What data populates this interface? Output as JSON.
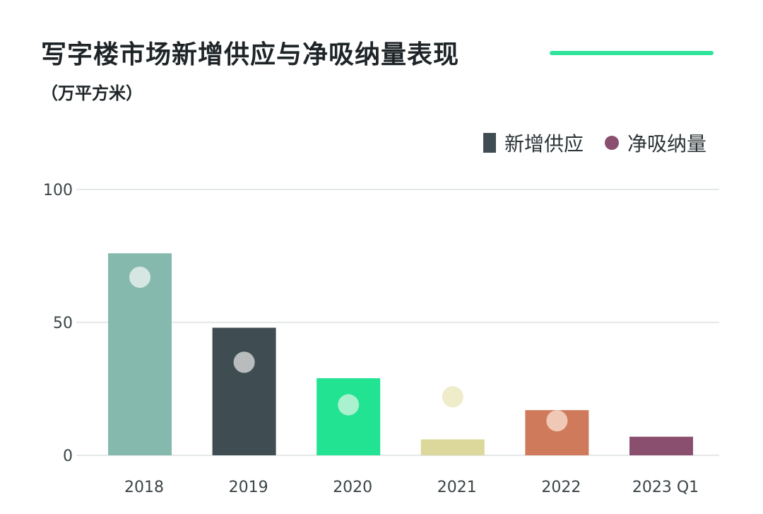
{
  "header": {
    "title": "写字楼市场新增供应与净吸纳量表现",
    "unit": "（万平方米）"
  },
  "legend": {
    "bar_label": "新增供应",
    "dot_label": "净吸纳量"
  },
  "colors": {
    "accent_rule": "#2fe39a",
    "grid": "#c9d0d2",
    "axis_text": "#3b4447"
  },
  "chart_data": {
    "type": "bar",
    "categories": [
      "2018",
      "2019",
      "2020",
      "2021",
      "2022",
      "2023 Q1"
    ],
    "series": [
      {
        "name": "新增供应",
        "kind": "bar",
        "values": [
          76,
          48,
          29,
          6,
          17,
          7
        ],
        "colors": [
          "#86b9ad",
          "#3f4d52",
          "#22e391",
          "#dcd89b",
          "#d07a5c",
          "#8a4f6e"
        ]
      },
      {
        "name": "净吸纳量",
        "kind": "dot",
        "values": [
          67,
          35,
          19,
          22,
          13,
          null
        ],
        "colors": [
          "#d6e7e3",
          "#b8bcbd",
          "#a9f1cf",
          "#efecca",
          "#f0c9b6",
          null
        ]
      }
    ],
    "yticks": [
      0,
      50,
      100
    ],
    "ylim": [
      0,
      100
    ],
    "grid": true,
    "legend_position": "top-right"
  }
}
